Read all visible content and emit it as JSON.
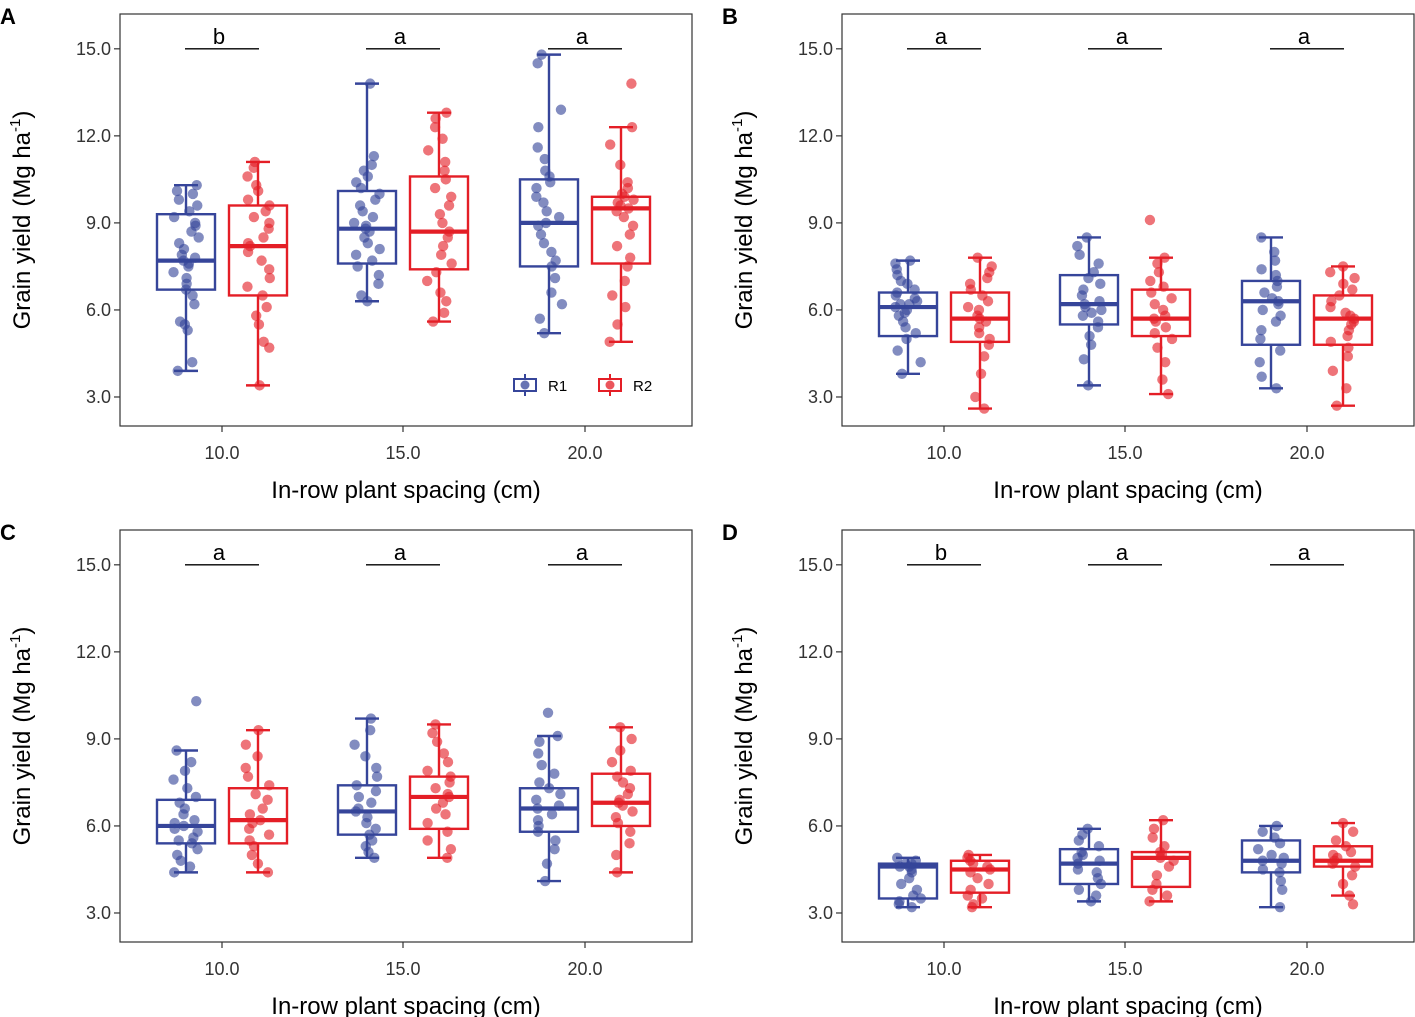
{
  "colors": {
    "R1": "#36459a",
    "R2": "#e41e26",
    "frame": "#333333",
    "sig_line": "#000000"
  },
  "legend": {
    "items": [
      "R1",
      "R2"
    ]
  },
  "chart_data": [
    {
      "panel": "A",
      "type": "boxplot",
      "xlabel": "In-row plant spacing (cm)",
      "ylabel_main": "Grain yield",
      "ylabel_unit": "Mg ha",
      "ylabel_exp": "-1",
      "ylim": [
        2.0,
        16.2
      ],
      "yticks": [
        3.0,
        6.0,
        9.0,
        12.0,
        15.0
      ],
      "ytick_labels": [
        "3.0",
        "6.0",
        "9.0",
        "12.0",
        "15.0"
      ],
      "categories": [
        "10.0",
        "15.0",
        "20.0"
      ],
      "significance": [
        "b",
        "a",
        "a"
      ],
      "series": [
        {
          "name": "R1",
          "boxes": [
            {
              "min": 3.9,
              "q1": 6.7,
              "median": 7.7,
              "q3": 9.3,
              "max": 10.3,
              "points": [
                3.9,
                4.2,
                5.3,
                5.5,
                5.6,
                6.2,
                6.5,
                6.7,
                6.9,
                7.1,
                7.3,
                7.5,
                7.6,
                7.7,
                7.8,
                7.9,
                8.1,
                8.3,
                8.5,
                8.7,
                8.9,
                9.0,
                9.2,
                9.4,
                9.6,
                9.8,
                10.0,
                10.1,
                10.3
              ]
            },
            {
              "min": 6.3,
              "q1": 7.6,
              "median": 8.8,
              "q3": 10.1,
              "max": 13.8,
              "points": [
                6.3,
                6.5,
                6.9,
                7.2,
                7.5,
                7.7,
                7.9,
                8.1,
                8.3,
                8.5,
                8.7,
                8.8,
                8.9,
                9.0,
                9.2,
                9.4,
                9.6,
                9.8,
                10.0,
                10.2,
                10.4,
                10.6,
                10.8,
                11.0,
                11.3,
                13.8
              ]
            },
            {
              "min": 5.2,
              "q1": 7.5,
              "median": 9.0,
              "q3": 10.5,
              "max": 14.8,
              "points": [
                5.2,
                5.7,
                6.2,
                6.6,
                7.1,
                7.5,
                7.7,
                8.0,
                8.3,
                8.6,
                8.9,
                9.0,
                9.2,
                9.4,
                9.7,
                9.9,
                10.2,
                10.4,
                10.6,
                10.8,
                11.2,
                11.6,
                12.3,
                12.9,
                14.5,
                14.8
              ]
            }
          ]
        },
        {
          "name": "R2",
          "boxes": [
            {
              "min": 3.4,
              "q1": 6.5,
              "median": 8.2,
              "q3": 9.6,
              "max": 11.1,
              "points": [
                3.4,
                4.7,
                4.9,
                5.5,
                5.8,
                6.1,
                6.5,
                6.8,
                7.1,
                7.4,
                7.7,
                8.0,
                8.2,
                8.3,
                8.5,
                8.8,
                9.0,
                9.2,
                9.4,
                9.6,
                9.8,
                10.1,
                10.3,
                10.6,
                10.9,
                11.1
              ]
            },
            {
              "min": 5.6,
              "q1": 7.4,
              "median": 8.7,
              "q3": 10.6,
              "max": 12.8,
              "points": [
                5.6,
                5.9,
                6.3,
                6.6,
                7.0,
                7.3,
                7.6,
                7.9,
                8.2,
                8.5,
                8.7,
                9.0,
                9.3,
                9.6,
                9.9,
                10.2,
                10.5,
                10.8,
                11.1,
                11.5,
                11.9,
                12.3,
                12.6,
                12.8
              ]
            },
            {
              "min": 4.9,
              "q1": 7.6,
              "median": 9.5,
              "q3": 9.9,
              "max": 12.3,
              "points": [
                4.9,
                5.5,
                6.1,
                6.5,
                7.0,
                7.5,
                7.8,
                8.2,
                8.6,
                8.9,
                9.2,
                9.4,
                9.5,
                9.6,
                9.7,
                9.8,
                9.9,
                10.0,
                10.2,
                10.4,
                11.0,
                11.7,
                12.3,
                13.8
              ]
            }
          ]
        }
      ]
    },
    {
      "panel": "B",
      "type": "boxplot",
      "xlabel": "In-row plant spacing (cm)",
      "ylabel_main": "Grain yield",
      "ylabel_unit": "Mg ha",
      "ylabel_exp": "-1",
      "ylim": [
        2.0,
        16.2
      ],
      "yticks": [
        3.0,
        6.0,
        9.0,
        12.0,
        15.0
      ],
      "ytick_labels": [
        "3.0",
        "6.0",
        "9.0",
        "12.0",
        "15.0"
      ],
      "categories": [
        "10.0",
        "15.0",
        "20.0"
      ],
      "significance": [
        "a",
        "a",
        "a"
      ],
      "series": [
        {
          "name": "R1",
          "boxes": [
            {
              "min": 3.8,
              "q1": 5.1,
              "median": 6.1,
              "q3": 6.6,
              "max": 7.7,
              "points": [
                3.8,
                4.2,
                4.6,
                5.0,
                5.2,
                5.4,
                5.6,
                5.8,
                5.9,
                6.0,
                6.1,
                6.2,
                6.2,
                6.3,
                6.4,
                6.5,
                6.6,
                6.7,
                6.9,
                7.0,
                7.2,
                7.4,
                7.6,
                7.7
              ]
            },
            {
              "min": 3.4,
              "q1": 5.5,
              "median": 6.2,
              "q3": 7.2,
              "max": 8.5,
              "points": [
                3.4,
                4.3,
                4.8,
                5.1,
                5.4,
                5.6,
                5.8,
                5.9,
                6.0,
                6.1,
                6.2,
                6.3,
                6.5,
                6.7,
                6.9,
                7.1,
                7.3,
                7.6,
                7.9,
                8.2,
                8.5
              ]
            },
            {
              "min": 3.3,
              "q1": 4.8,
              "median": 6.3,
              "q3": 7.0,
              "max": 8.5,
              "points": [
                3.3,
                3.7,
                4.2,
                4.6,
                5.0,
                5.3,
                5.6,
                5.8,
                6.0,
                6.2,
                6.3,
                6.4,
                6.6,
                6.8,
                7.0,
                7.2,
                7.4,
                7.7,
                8.0,
                8.5
              ]
            }
          ]
        },
        {
          "name": "R2",
          "boxes": [
            {
              "min": 2.6,
              "q1": 4.9,
              "median": 5.7,
              "q3": 6.6,
              "max": 7.8,
              "points": [
                2.6,
                3.0,
                3.8,
                4.4,
                4.8,
                5.0,
                5.2,
                5.4,
                5.6,
                5.7,
                5.8,
                6.0,
                6.1,
                6.3,
                6.5,
                6.7,
                6.9,
                7.1,
                7.3,
                7.5,
                7.8
              ]
            },
            {
              "min": 3.1,
              "q1": 5.1,
              "median": 5.7,
              "q3": 6.7,
              "max": 7.8,
              "points": [
                3.1,
                3.6,
                4.2,
                4.7,
                5.0,
                5.2,
                5.4,
                5.6,
                5.7,
                5.8,
                6.0,
                6.2,
                6.4,
                6.6,
                6.8,
                7.0,
                7.3,
                7.6,
                7.8,
                9.1
              ]
            },
            {
              "min": 2.7,
              "q1": 4.8,
              "median": 5.7,
              "q3": 6.5,
              "max": 7.5,
              "points": [
                2.7,
                3.3,
                3.9,
                4.4,
                4.7,
                4.9,
                5.1,
                5.3,
                5.5,
                5.6,
                5.7,
                5.8,
                5.9,
                6.1,
                6.3,
                6.5,
                6.7,
                6.9,
                7.1,
                7.3,
                7.5
              ]
            }
          ]
        }
      ]
    },
    {
      "panel": "C",
      "type": "boxplot",
      "xlabel": "In-row plant spacing (cm)",
      "ylabel_main": "Grain yield",
      "ylabel_unit": "Mg ha",
      "ylabel_exp": "-1",
      "ylim": [
        2.0,
        16.2
      ],
      "yticks": [
        3.0,
        6.0,
        9.0,
        12.0,
        15.0
      ],
      "ytick_labels": [
        "3.0",
        "6.0",
        "9.0",
        "12.0",
        "15.0"
      ],
      "categories": [
        "10.0",
        "15.0",
        "20.0"
      ],
      "significance": [
        "a",
        "a",
        "a"
      ],
      "series": [
        {
          "name": "R1",
          "boxes": [
            {
              "min": 4.4,
              "q1": 5.4,
              "median": 6.0,
              "q3": 6.9,
              "max": 8.6,
              "points": [
                4.4,
                4.6,
                4.8,
                5.0,
                5.2,
                5.4,
                5.5,
                5.6,
                5.8,
                5.9,
                6.0,
                6.1,
                6.2,
                6.4,
                6.6,
                6.8,
                7.0,
                7.3,
                7.6,
                7.9,
                8.2,
                8.6,
                10.3
              ]
            },
            {
              "min": 4.9,
              "q1": 5.7,
              "median": 6.5,
              "q3": 7.4,
              "max": 9.7,
              "points": [
                4.9,
                5.1,
                5.3,
                5.5,
                5.7,
                5.9,
                6.1,
                6.3,
                6.5,
                6.6,
                6.8,
                7.0,
                7.2,
                7.4,
                7.7,
                8.0,
                8.4,
                8.8,
                9.3,
                9.7
              ]
            },
            {
              "min": 4.1,
              "q1": 5.8,
              "median": 6.6,
              "q3": 7.3,
              "max": 9.1,
              "points": [
                4.1,
                4.7,
                5.2,
                5.5,
                5.8,
                6.0,
                6.2,
                6.4,
                6.6,
                6.7,
                6.9,
                7.1,
                7.3,
                7.5,
                7.8,
                8.1,
                8.5,
                8.9,
                9.1,
                9.9
              ]
            }
          ]
        },
        {
          "name": "R2",
          "boxes": [
            {
              "min": 4.4,
              "q1": 5.4,
              "median": 6.2,
              "q3": 7.3,
              "max": 9.3,
              "points": [
                4.4,
                4.7,
                5.0,
                5.3,
                5.5,
                5.7,
                5.9,
                6.1,
                6.2,
                6.4,
                6.6,
                6.9,
                7.1,
                7.4,
                7.7,
                8.0,
                8.4,
                8.8,
                9.3
              ]
            },
            {
              "min": 4.9,
              "q1": 5.9,
              "median": 7.0,
              "q3": 7.7,
              "max": 9.5,
              "points": [
                4.9,
                5.2,
                5.5,
                5.8,
                6.1,
                6.4,
                6.6,
                6.8,
                7.0,
                7.1,
                7.3,
                7.5,
                7.7,
                7.9,
                8.2,
                8.5,
                8.9,
                9.2,
                9.5
              ]
            },
            {
              "min": 4.4,
              "q1": 6.0,
              "median": 6.8,
              "q3": 7.8,
              "max": 9.4,
              "points": [
                4.4,
                5.0,
                5.4,
                5.8,
                6.1,
                6.3,
                6.5,
                6.7,
                6.8,
                6.9,
                7.1,
                7.3,
                7.5,
                7.7,
                7.9,
                8.2,
                8.6,
                9.0,
                9.4
              ]
            }
          ]
        }
      ]
    },
    {
      "panel": "D",
      "type": "boxplot",
      "xlabel": "In-row plant spacing (cm)",
      "ylabel_main": "Grain yield",
      "ylabel_unit": "Mg ha",
      "ylabel_exp": "-1",
      "ylim": [
        2.0,
        16.2
      ],
      "yticks": [
        3.0,
        6.0,
        9.0,
        12.0,
        15.0
      ],
      "ytick_labels": [
        "3.0",
        "6.0",
        "9.0",
        "12.0",
        "15.0"
      ],
      "categories": [
        "10.0",
        "15.0",
        "20.0"
      ],
      "significance": [
        "b",
        "a",
        "a"
      ],
      "series": [
        {
          "name": "R1",
          "boxes": [
            {
              "min": 3.2,
              "q1": 3.5,
              "median": 4.6,
              "q3": 4.7,
              "max": 4.9,
              "points": [
                3.2,
                3.3,
                3.4,
                3.5,
                3.6,
                3.8,
                4.0,
                4.2,
                4.4,
                4.5,
                4.6,
                4.6,
                4.7,
                4.7,
                4.8,
                4.9
              ]
            },
            {
              "min": 3.4,
              "q1": 4.0,
              "median": 4.7,
              "q3": 5.2,
              "max": 5.9,
              "points": [
                3.4,
                3.6,
                3.8,
                4.0,
                4.2,
                4.4,
                4.5,
                4.7,
                4.8,
                4.9,
                5.0,
                5.1,
                5.3,
                5.5,
                5.7,
                5.9
              ]
            },
            {
              "min": 3.2,
              "q1": 4.4,
              "median": 4.8,
              "q3": 5.5,
              "max": 6.0,
              "points": [
                3.2,
                3.8,
                4.1,
                4.4,
                4.5,
                4.7,
                4.8,
                4.9,
                5.0,
                5.2,
                5.4,
                5.6,
                5.8,
                6.0
              ]
            }
          ]
        },
        {
          "name": "R2",
          "boxes": [
            {
              "min": 3.2,
              "q1": 3.7,
              "median": 4.5,
              "q3": 4.8,
              "max": 5.0,
              "points": [
                3.2,
                3.3,
                3.5,
                3.6,
                3.8,
                4.0,
                4.2,
                4.4,
                4.5,
                4.6,
                4.7,
                4.8,
                4.9,
                5.0
              ]
            },
            {
              "min": 3.4,
              "q1": 3.9,
              "median": 4.9,
              "q3": 5.1,
              "max": 6.2,
              "points": [
                3.4,
                3.6,
                3.8,
                4.0,
                4.3,
                4.6,
                4.8,
                4.9,
                5.0,
                5.1,
                5.3,
                5.6,
                5.9,
                6.2
              ]
            },
            {
              "min": 3.6,
              "q1": 4.6,
              "median": 4.8,
              "q3": 5.3,
              "max": 6.1,
              "points": [
                3.3,
                3.6,
                4.0,
                4.3,
                4.6,
                4.7,
                4.8,
                4.9,
                5.0,
                5.1,
                5.3,
                5.5,
                5.8,
                6.1
              ]
            }
          ]
        }
      ]
    }
  ]
}
